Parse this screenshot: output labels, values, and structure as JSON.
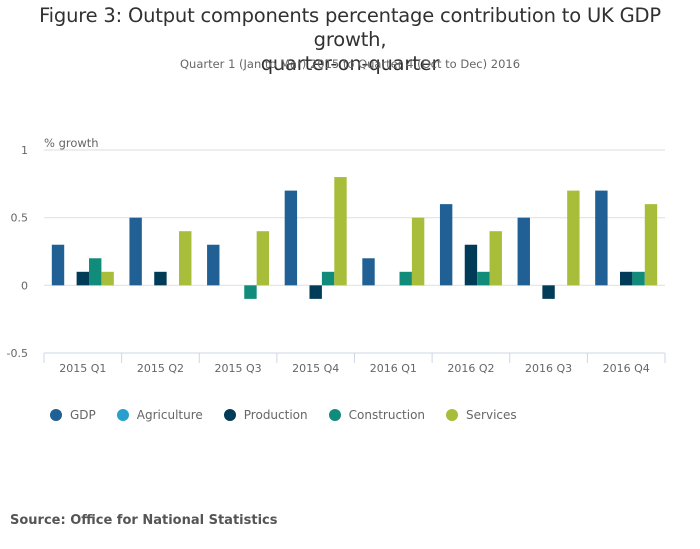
{
  "chart_data": {
    "type": "bar",
    "title": "Figure 3: Output components percentage contribution to UK GDP growth, quarter-on-quarter",
    "title_lines": [
      "Figure 3: Output components percentage contribution to UK GDP growth,",
      "quarter-on-quarter"
    ],
    "subtitle": "Quarter 1 (Jan to Mar) 2015 to Quarter 4 (Oct to Dec) 2016",
    "ylabel": "% growth",
    "xlabel": "",
    "ylim": [
      -0.5,
      1
    ],
    "yticks": [
      1,
      0.5,
      0,
      -0.5
    ],
    "ytick_labels": [
      "1",
      "0.5",
      "0",
      "-0.5"
    ],
    "grid": true,
    "legend_position": "bottom-left",
    "categories": [
      "2015 Q1",
      "2015 Q2",
      "2015 Q3",
      "2015 Q4",
      "2016 Q1",
      "2016 Q2",
      "2016 Q3",
      "2016 Q4"
    ],
    "series": [
      {
        "name": "GDP",
        "color": "#206095",
        "values": [
          0.3,
          0.5,
          0.3,
          0.7,
          0.2,
          0.6,
          0.5,
          0.7
        ]
      },
      {
        "name": "Agriculture",
        "color": "#27a0cc",
        "values": [
          0,
          0,
          0,
          0,
          0,
          0,
          0,
          0
        ]
      },
      {
        "name": "Production",
        "color": "#003c57",
        "values": [
          0.1,
          0.1,
          0,
          -0.1,
          0,
          0.3,
          -0.1,
          0.1
        ]
      },
      {
        "name": "Construction",
        "color": "#118c7b",
        "values": [
          0.2,
          0,
          -0.1,
          0.1,
          0.1,
          0.1,
          0,
          0.1
        ]
      },
      {
        "name": "Services",
        "color": "#a8bd3a",
        "values": [
          0.1,
          0.4,
          0.4,
          0.8,
          0.5,
          0.4,
          0.7,
          0.6
        ]
      }
    ]
  },
  "source": "Source: Office for National Statistics"
}
